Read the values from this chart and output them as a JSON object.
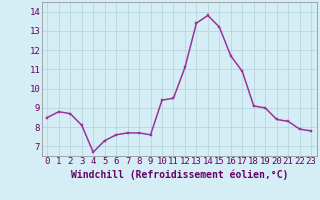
{
  "x": [
    0,
    1,
    2,
    3,
    4,
    5,
    6,
    7,
    8,
    9,
    10,
    11,
    12,
    13,
    14,
    15,
    16,
    17,
    18,
    19,
    20,
    21,
    22,
    23
  ],
  "y": [
    8.5,
    8.8,
    8.7,
    8.1,
    6.7,
    7.3,
    7.6,
    7.7,
    7.7,
    7.6,
    9.4,
    9.5,
    11.1,
    13.4,
    13.8,
    13.2,
    11.7,
    10.9,
    9.1,
    9.0,
    8.4,
    8.3,
    7.9,
    7.8
  ],
  "line_color": "#993399",
  "marker_color": "#993399",
  "bg_color": "#d5edf5",
  "grid_color": "#b8d4dc",
  "xlabel": "Windchill (Refroidissement éolien,°C)",
  "xlim": [
    -0.5,
    23.5
  ],
  "ylim": [
    6.5,
    14.5
  ],
  "yticks": [
    7,
    8,
    9,
    10,
    11,
    12,
    13,
    14
  ],
  "xticks": [
    0,
    1,
    2,
    3,
    4,
    5,
    6,
    7,
    8,
    9,
    10,
    11,
    12,
    13,
    14,
    15,
    16,
    17,
    18,
    19,
    20,
    21,
    22,
    23
  ],
  "tick_label_fontsize": 6.5,
  "xlabel_fontsize": 7.0,
  "marker_size": 2.0,
  "line_width": 1.1
}
